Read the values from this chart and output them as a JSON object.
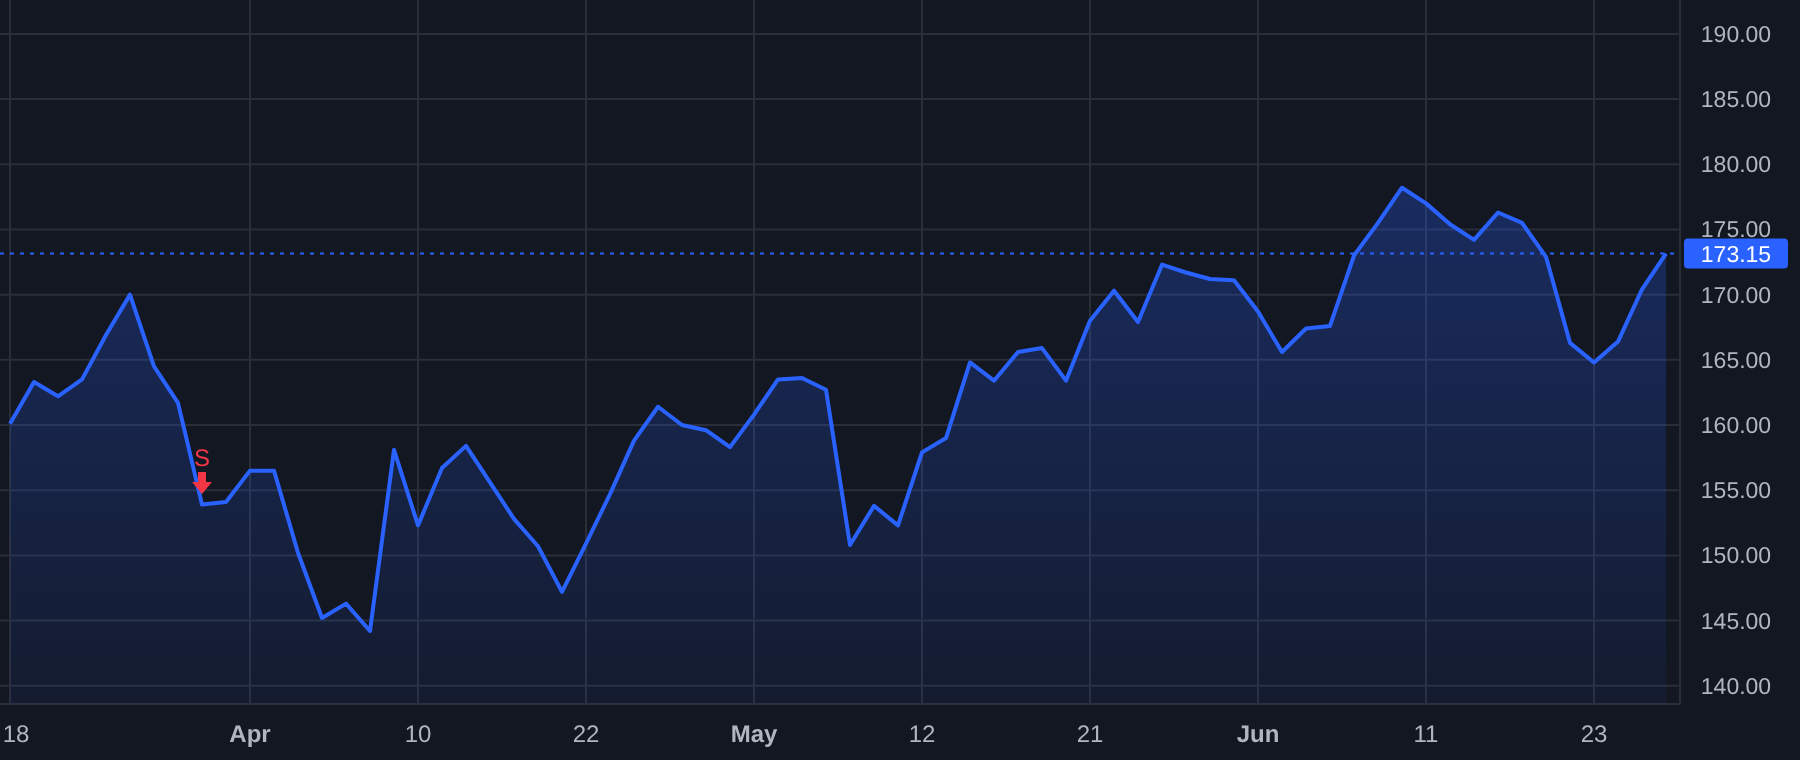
{
  "chart_data": {
    "type": "area",
    "categories": [
      "18",
      null,
      null,
      null,
      null,
      null,
      null,
      null,
      null,
      null,
      "Apr",
      null,
      null,
      null,
      null,
      null,
      null,
      "10",
      null,
      null,
      null,
      null,
      null,
      null,
      "22",
      null,
      null,
      null,
      null,
      null,
      null,
      "May",
      null,
      null,
      null,
      null,
      null,
      null,
      "12",
      null,
      null,
      null,
      null,
      null,
      null,
      "21",
      null,
      null,
      null,
      null,
      null,
      null,
      "Jun",
      null,
      null,
      null,
      null,
      null,
      null,
      "11",
      null,
      null,
      null,
      null,
      null,
      null,
      "23",
      null,
      null,
      null
    ],
    "series": [
      {
        "color": "#2962ff",
        "values": [
          160.1,
          163.3,
          162.2,
          163.5,
          166.9,
          170.0,
          164.5,
          161.7,
          153.9,
          154.1,
          156.5,
          156.5,
          150.2,
          145.2,
          146.3,
          144.2,
          158.1,
          152.3,
          156.7,
          158.4,
          155.6,
          152.8,
          150.7,
          147.2,
          150.9,
          154.7,
          158.8,
          161.4,
          160.0,
          159.6,
          158.3,
          160.8,
          163.5,
          163.6,
          162.7,
          150.8,
          153.8,
          152.3,
          157.9,
          159.0,
          164.8,
          163.4,
          165.6,
          165.9,
          163.4,
          168.0,
          170.3,
          167.9,
          172.3,
          171.7,
          171.2,
          171.1,
          168.7,
          165.6,
          167.4,
          167.6,
          173.0,
          175.5,
          178.2,
          177.0,
          175.4,
          174.2,
          176.3,
          175.5,
          172.9,
          166.3,
          164.8,
          166.4,
          170.4,
          173.15
        ]
      }
    ],
    "ylim": [
      138.6,
      192.6
    ],
    "yticks": [
      {
        "value": 140,
        "label": "140.00"
      },
      {
        "value": 145,
        "label": "145.00"
      },
      {
        "value": 150,
        "label": "150.00"
      },
      {
        "value": 155,
        "label": "155.00"
      },
      {
        "value": 160,
        "label": "160.00"
      },
      {
        "value": 165,
        "label": "165.00"
      },
      {
        "value": 170,
        "label": "170.00"
      },
      {
        "value": 175,
        "label": "175.00"
      },
      {
        "value": 180,
        "label": "180.00"
      },
      {
        "value": 185,
        "label": "185.00"
      },
      {
        "value": 190,
        "label": "190.00"
      }
    ],
    "grid": true,
    "ref_lines": [
      {
        "axis": "y",
        "value": 173.15,
        "label": "173.15",
        "color": "#2962ff",
        "line_style": "dotted"
      }
    ],
    "annotations": [
      "S"
    ]
  }
}
